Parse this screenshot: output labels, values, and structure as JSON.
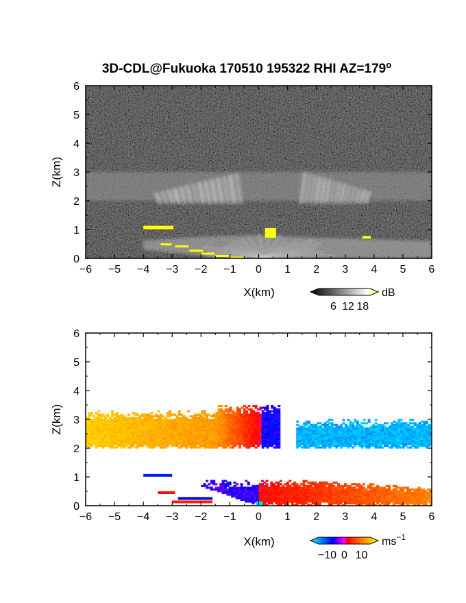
{
  "title": "3D-CDL@Fukuoka 170510 195322 RHI AZ=179",
  "title_sup": "o",
  "chart_data": [
    {
      "type": "heatmap",
      "panel": "reflectivity",
      "xlabel": "X(km)",
      "ylabel": "Z(km)",
      "xlim": [
        -6,
        6
      ],
      "ylim": [
        0,
        6
      ],
      "x_ticks": [
        "−6",
        "−5",
        "−4",
        "−3",
        "−2",
        "−1",
        "0",
        "1",
        "2",
        "3",
        "4",
        "5",
        "6"
      ],
      "y_ticks": [
        "0",
        "1",
        "2",
        "3",
        "4",
        "5",
        "6"
      ],
      "colorbar": {
        "unit": "dB",
        "unit_sup": "",
        "ticks": [
          "6",
          "12",
          "18"
        ],
        "values": [
          6,
          12,
          18
        ],
        "range": [
          0,
          21
        ],
        "colors": [
          "#000000",
          "#ffffff",
          "#ffff00"
        ]
      },
      "background_color": "#333333",
      "features": [
        {
          "name": "aerosol-layer",
          "x": [
            -6,
            6
          ],
          "z": [
            2.0,
            3.0
          ],
          "level_db": 10
        },
        {
          "name": "wedge-left",
          "x": [
            -3.5,
            -0.5
          ],
          "z": [
            1.9,
            3.0
          ],
          "level_db": 13
        },
        {
          "name": "wedge-right",
          "x": [
            1.4,
            3.8
          ],
          "z": [
            1.9,
            3.0
          ],
          "level_db": 13
        },
        {
          "name": "boundary-layer",
          "x": [
            -4,
            6
          ],
          "z": [
            0,
            0.8
          ],
          "level_db": 12
        },
        {
          "name": "saturated-spots",
          "color": "#ffff00",
          "points": [
            [
              0.4,
              0.85
            ],
            [
              -3.5,
              1.05
            ],
            [
              3.8,
              0.75
            ],
            [
              -3.2,
              0.5
            ],
            [
              -2,
              0.2
            ]
          ]
        }
      ]
    },
    {
      "type": "heatmap",
      "panel": "doppler-velocity",
      "xlabel": "X(km)",
      "ylabel": "Z(km)",
      "xlim": [
        -6,
        6
      ],
      "ylim": [
        0,
        6
      ],
      "x_ticks": [
        "−6",
        "−5",
        "−4",
        "−3",
        "−2",
        "−1",
        "0",
        "1",
        "2",
        "3",
        "4",
        "5",
        "6"
      ],
      "y_ticks": [
        "0",
        "1",
        "2",
        "3",
        "4",
        "5",
        "6"
      ],
      "colorbar": {
        "unit": "ms",
        "unit_sup": "−1",
        "ticks": [
          "−10",
          "0",
          "10"
        ],
        "values": [
          -10,
          0,
          10
        ],
        "range": [
          -15,
          15
        ],
        "colors": [
          "#00ffff",
          "#0000ff",
          "#ff0000",
          "#ffff00"
        ]
      },
      "background_color": "#ffffff",
      "features": [
        {
          "name": "upper-left-yellow",
          "x": [
            -6,
            -1.5
          ],
          "z": [
            2.0,
            3.3
          ],
          "velocity_ms": 12
        },
        {
          "name": "upper-left-orange",
          "x": [
            -1.5,
            0.1
          ],
          "z": [
            2.0,
            3.5
          ],
          "velocity_ms": 6
        },
        {
          "name": "upper-center-blue",
          "x": [
            0.1,
            0.7
          ],
          "z": [
            2.0,
            3.5
          ],
          "velocity_ms": -5
        },
        {
          "name": "upper-right-cyan",
          "x": [
            1.3,
            6
          ],
          "z": [
            2.0,
            3.0
          ],
          "velocity_ms": -12
        },
        {
          "name": "lower-left-blue",
          "x": [
            -2,
            0.1
          ],
          "z": [
            0,
            0.9
          ],
          "velocity_ms": -4
        },
        {
          "name": "lower-right-red",
          "x": [
            0,
            6
          ],
          "z": [
            0,
            0.95
          ],
          "velocity_ms": 5
        }
      ]
    }
  ]
}
